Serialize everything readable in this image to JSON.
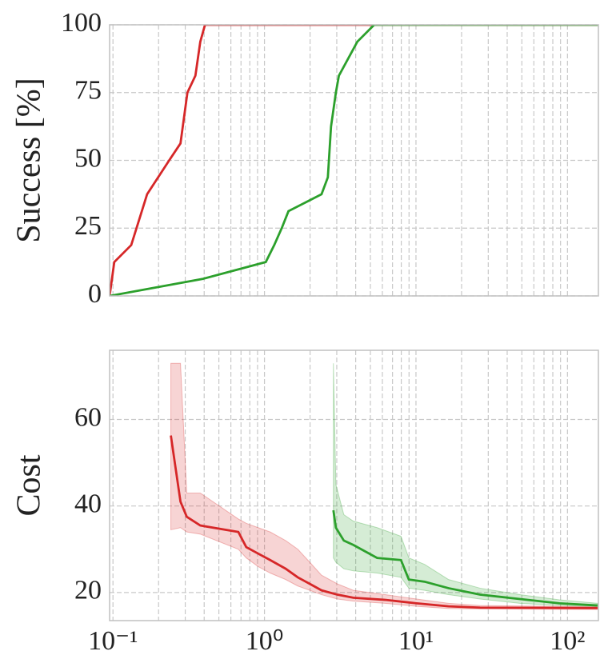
{
  "chart_data": [
    {
      "type": "line",
      "ylabel": "Success [%]",
      "log_x": true,
      "grid": true,
      "show_xtick_labels": false,
      "xlim": [
        0.095,
        160
      ],
      "xticks": [
        0.1,
        1,
        10,
        100
      ],
      "x_minor_ticks": [
        0.2,
        0.3,
        0.4,
        0.5,
        0.6,
        0.7,
        0.8,
        0.9,
        2,
        3,
        4,
        5,
        6,
        7,
        8,
        9,
        20,
        30,
        40,
        50,
        60,
        70,
        80,
        90
      ],
      "ylim": [
        0,
        100
      ],
      "yticks": [
        0,
        25,
        50,
        75,
        100
      ],
      "series": [
        {
          "color": "#d62728",
          "x": [
            0.095,
            0.102,
            0.132,
            0.168,
            0.235,
            0.279,
            0.31,
            0.35,
            0.377,
            0.405,
            160
          ],
          "values": [
            0,
            12.5,
            18.75,
            37.5,
            50,
            56.25,
            75,
            81.25,
            93.75,
            100,
            100
          ]
        },
        {
          "color": "#2ca02c",
          "x": [
            0.095,
            0.39,
            1.02,
            1.16,
            1.3,
            1.44,
            2.38,
            2.62,
            2.75,
            2.96,
            3.1,
            4.1,
            5.3,
            160
          ],
          "values": [
            0,
            6.25,
            12.5,
            18.75,
            25,
            31.25,
            37.5,
            43.75,
            62.5,
            75,
            81.25,
            93.75,
            100,
            100
          ]
        }
      ]
    },
    {
      "type": "line",
      "ylabel": "Cost",
      "log_x": true,
      "grid": true,
      "show_xtick_labels": true,
      "xlim": [
        0.095,
        160
      ],
      "xticks": [
        {
          "value": 0.1,
          "label": "10⁻¹"
        },
        {
          "value": 1,
          "label": "10⁰"
        },
        {
          "value": 10,
          "label": "10¹"
        },
        {
          "value": 100,
          "label": "10²"
        }
      ],
      "x_minor_ticks": [
        0.2,
        0.3,
        0.4,
        0.5,
        0.6,
        0.7,
        0.8,
        0.9,
        2,
        3,
        4,
        5,
        6,
        7,
        8,
        9,
        20,
        30,
        40,
        50,
        60,
        70,
        80,
        90
      ],
      "ylim": [
        13.5,
        76
      ],
      "yticks": [
        20,
        40,
        60
      ],
      "series": [
        {
          "color": "#d62728",
          "x": [
            0.241,
            0.279,
            0.307,
            0.377,
            0.672,
            0.758,
            0.908,
            1.09,
            1.38,
            1.66,
            1.99,
            2.38,
            3.03,
            3.86,
            6.25,
            10.1,
            16.4,
            26.5,
            158
          ],
          "values": [
            56.3,
            41,
            37.5,
            35.5,
            34,
            30.5,
            29,
            27.5,
            25.5,
            23.5,
            22,
            20.5,
            19.5,
            18.8,
            18.3,
            17.5,
            16.8,
            16.5,
            16.4
          ],
          "lower": [
            34.5,
            35,
            34,
            33.5,
            30,
            28,
            26,
            24.5,
            23,
            21.5,
            20.5,
            19.5,
            18.5,
            18,
            17.5,
            16.8,
            16.3,
            16.2,
            16.1
          ],
          "upper": [
            73,
            73,
            43,
            43,
            37,
            36,
            35,
            34,
            32,
            30,
            27,
            24,
            22,
            20.5,
            19.5,
            18.5,
            17.5,
            17,
            16.7
          ]
        },
        {
          "color": "#2ca02c",
          "x": [
            2.85,
            2.96,
            3.34,
            3.86,
            5.54,
            7.96,
            8.97,
            11.4,
            16.4,
            26.5,
            48.5,
            88.6,
            158
          ],
          "values": [
            39,
            35,
            32,
            31,
            28,
            27.5,
            23,
            22.5,
            21,
            19.5,
            18.5,
            17.5,
            17
          ],
          "lower": [
            28,
            27,
            25.5,
            25,
            24.5,
            23.5,
            21,
            20.5,
            19.5,
            18.5,
            17.5,
            17,
            16.8
          ],
          "upper": [
            73,
            45,
            38,
            36.5,
            35,
            33,
            28,
            26.5,
            23,
            21,
            19.5,
            18.3,
            17.5
          ]
        }
      ]
    }
  ]
}
